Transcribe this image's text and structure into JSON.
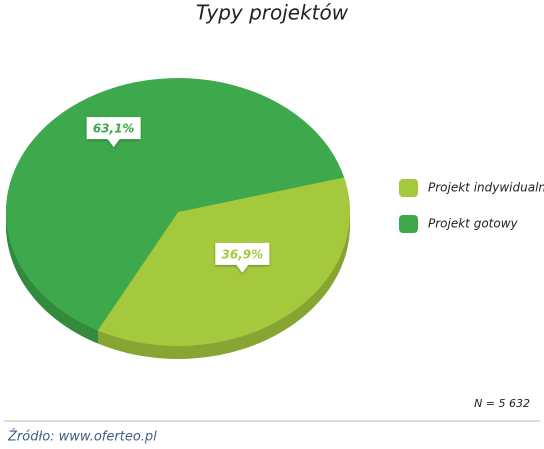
{
  "chart_data": {
    "type": "pie",
    "title": "Typy projektów",
    "categories": [
      "Projekt indywidualny",
      "Projekt gotowy"
    ],
    "values": [
      36.9,
      63.1
    ],
    "value_labels": [
      "36,9%",
      "63,1%"
    ],
    "colors": [
      "#a5c93d",
      "#3ea94c"
    ],
    "note": "N = 5 632",
    "source": "Źródło: www.oferteo.pl",
    "legend": "right"
  }
}
